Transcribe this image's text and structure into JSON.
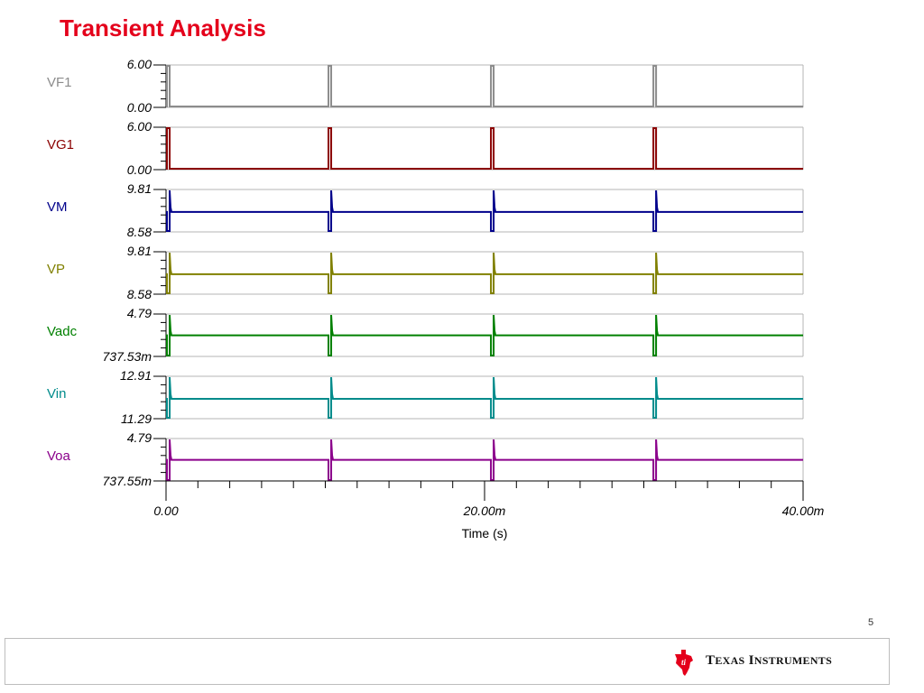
{
  "page": {
    "title": "Transient Analysis",
    "page_number": "5",
    "company": {
      "part1_big": "T",
      "part1_small": "EXAS",
      "part2_big": "I",
      "part2_small": "NSTRUMENTS"
    },
    "logo_icon": "texas-instruments-logo-icon"
  },
  "chart_data": {
    "type": "line",
    "xlabel": "Time (s)",
    "x_ticks": [
      "0.00",
      "20.00m",
      "40.00m"
    ],
    "xlim": [
      0,
      0.04
    ],
    "pulse_times": [
      0,
      0.0102,
      0.0204,
      0.0306
    ],
    "series": [
      {
        "name": "VF1",
        "color": "#8c8c8c",
        "ymax_label": "6.00",
        "ymin_label": "0.00",
        "ylim": [
          0,
          6.0
        ],
        "baseline": 0.0,
        "shape": "pulse-up"
      },
      {
        "name": "VG1",
        "color": "#8b0000",
        "ymax_label": "6.00",
        "ymin_label": "0.00",
        "ylim": [
          0,
          6.0
        ],
        "baseline": 0.0,
        "shape": "pulse-up"
      },
      {
        "name": "VM",
        "color": "#00008b",
        "ymax_label": "9.81",
        "ymin_label": "8.58",
        "ylim": [
          8.58,
          9.81
        ],
        "baseline": 9.16,
        "shape": "dip-spike"
      },
      {
        "name": "VP",
        "color": "#808000",
        "ymax_label": "9.81",
        "ymin_label": "8.58",
        "ylim": [
          8.58,
          9.81
        ],
        "baseline": 9.16,
        "shape": "dip-spike"
      },
      {
        "name": "Vadc",
        "color": "#008000",
        "ymax_label": "4.79",
        "ymin_label": "737.53m",
        "ylim": [
          0.73753,
          4.79
        ],
        "baseline": 2.75,
        "shape": "dip-spike"
      },
      {
        "name": "Vin",
        "color": "#008b8b",
        "ymax_label": "12.91",
        "ymin_label": "11.29",
        "ylim": [
          11.29,
          12.91
        ],
        "baseline": 12.05,
        "shape": "dip-spike"
      },
      {
        "name": "Voa",
        "color": "#8b008b",
        "ymax_label": "4.79",
        "ymin_label": "737.55m",
        "ylim": [
          0.73755,
          4.79
        ],
        "baseline": 2.75,
        "shape": "dip-spike"
      }
    ]
  }
}
